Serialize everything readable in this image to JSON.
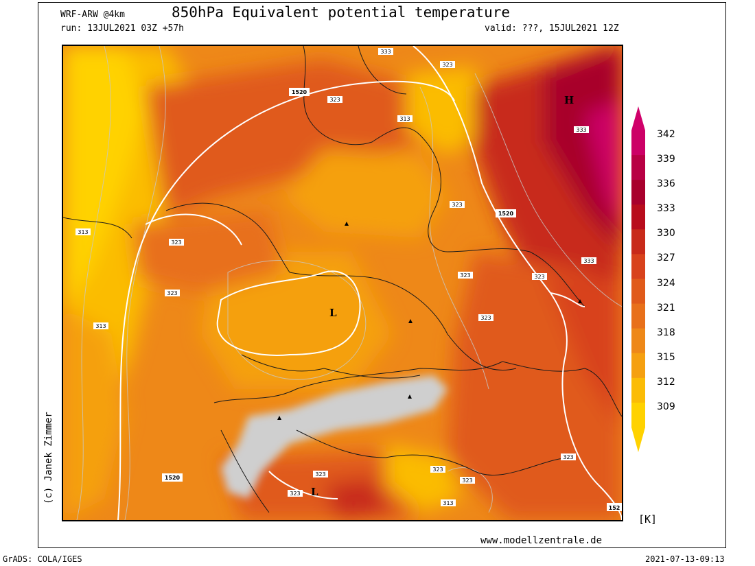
{
  "header": {
    "model": "WRF-ARW @4km",
    "title": "850hPa Equivalent potential temperature",
    "run": "run: 13JUL2021 03Z +57h",
    "valid": "valid: ???, 15JUL2021 12Z"
  },
  "footer": {
    "website": "www.modellzentrale.de",
    "software": "GrADS: COLA/IGES",
    "timestamp": "2021-07-13-09:13",
    "credit": "(c) Janek Zimmer"
  },
  "legend": {
    "unit": "[K]",
    "levels": [
      "342",
      "339",
      "336",
      "333",
      "330",
      "327",
      "324",
      "321",
      "318",
      "315",
      "312",
      "309"
    ],
    "colors": [
      "#cc0066",
      "#b80044",
      "#a8002c",
      "#b80c1c",
      "#c82a1a",
      "#d8421c",
      "#e05a1a",
      "#e8701a",
      "#ee8818",
      "#f5a010",
      "#fbbc06",
      "#ffd200"
    ]
  },
  "map": {
    "type": "contour field map",
    "region": "Central Europe",
    "isotherm_labels": [
      "333",
      "323",
      "313",
      "323",
      "333",
      "1520",
      "323",
      "313",
      "323",
      "323",
      "323",
      "323",
      "1520",
      "313",
      "333",
      "323",
      "323",
      "313",
      "323",
      "323",
      "1520",
      "323",
      "313",
      "323",
      "152"
    ],
    "pressure_centers": [
      "H",
      "L",
      "L"
    ],
    "terrain_mask": "above-850hPa terrain (Alps) shaded grey"
  }
}
